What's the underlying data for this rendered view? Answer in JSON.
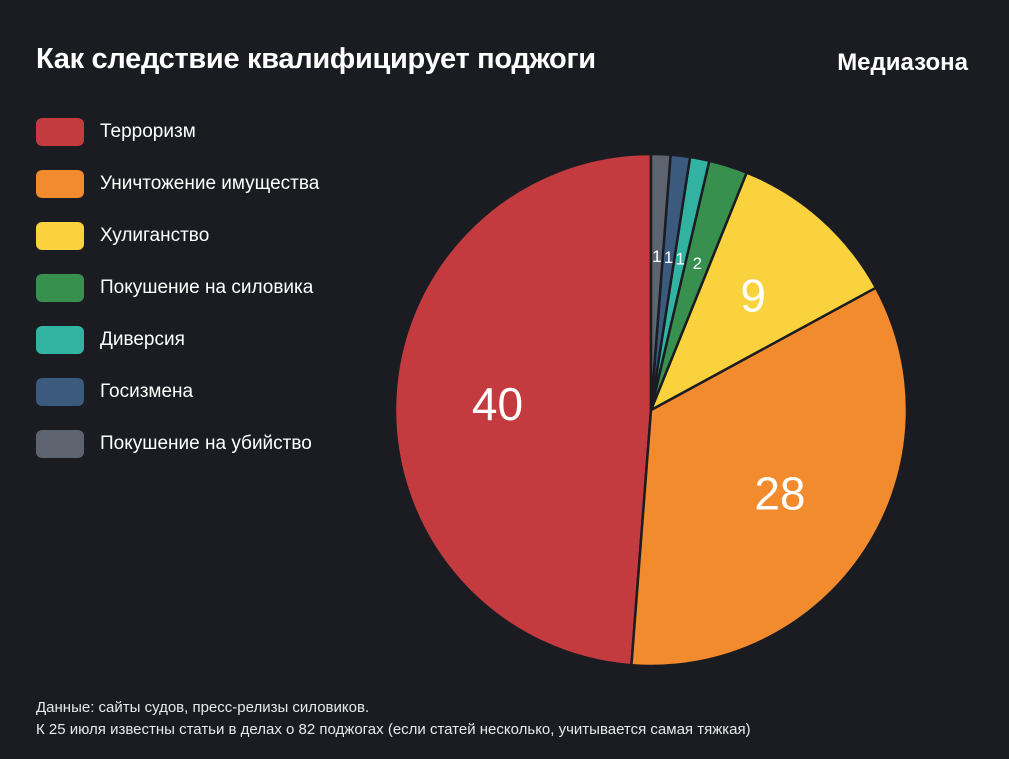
{
  "header": {
    "title": "Как следствие квалифицирует поджоги",
    "brand": "Медиазона"
  },
  "colors": {
    "background": "#1a1c22",
    "label_text": "#ffffff"
  },
  "chart_data": {
    "type": "pie",
    "title": "Как следствие квалифицирует поджоги",
    "total": 82,
    "start_angle_deg": 90,
    "direction": "counterclockwise",
    "legend_position": "left",
    "slices": [
      {
        "label": "Терроризм",
        "value": 40,
        "color": "#c43b3f"
      },
      {
        "label": "Уничтожение имущества",
        "value": 28,
        "color": "#f28b2d"
      },
      {
        "label": "Хулиганство",
        "value": 9,
        "color": "#fad23d"
      },
      {
        "label": "Покушение на силовика",
        "value": 2,
        "color": "#38904f"
      },
      {
        "label": "Диверсия",
        "value": 1,
        "color": "#32b3a2"
      },
      {
        "label": "Госизмена",
        "value": 1,
        "color": "#3c5a7d"
      },
      {
        "label": "Покушение на убийство",
        "value": 1,
        "color": "#5d6470"
      }
    ]
  },
  "footer": {
    "line1": "Данные: сайты судов, пресс-релизы силовиков.",
    "line2": "К 25 июля известны статьи в делах о 82 поджогах (если статей несколько, учитывается самая тяжкая)"
  }
}
